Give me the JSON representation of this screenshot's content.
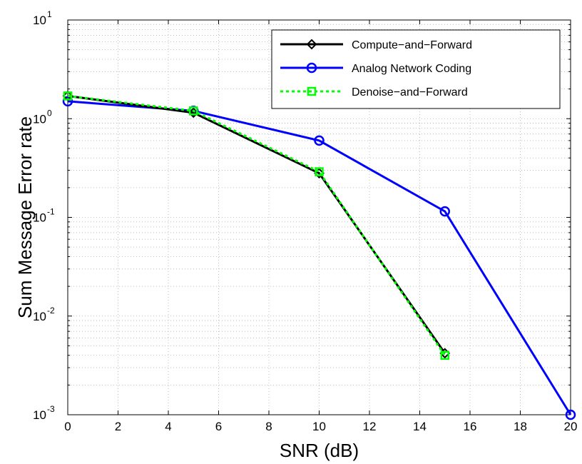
{
  "chart_data": {
    "type": "line",
    "title": "",
    "xlabel": "SNR (dB)",
    "ylabel": "Sum Message Error rate",
    "xlim": [
      0,
      20
    ],
    "ylim": [
      0.001,
      10
    ],
    "yscale": "log",
    "grid": true,
    "legend_position": "top-right",
    "x_ticks": [
      "0",
      "2",
      "4",
      "6",
      "8",
      "10",
      "12",
      "14",
      "16",
      "18",
      "20"
    ],
    "y_ticks": [
      {
        "base": "10",
        "exp": "-3"
      },
      {
        "base": "10",
        "exp": "-2"
      },
      {
        "base": "10",
        "exp": "-1"
      },
      {
        "base": "10",
        "exp": "0"
      },
      {
        "base": "10",
        "exp": "1"
      }
    ],
    "series": [
      {
        "name": "Compute−and−Forward",
        "color": "#000000",
        "marker": "diamond",
        "line_style": "solid",
        "x": [
          0,
          5,
          10,
          15
        ],
        "y": [
          1.7,
          1.15,
          0.28,
          0.0042
        ]
      },
      {
        "name": "Analog Network Coding",
        "color": "#0000ff",
        "marker": "circle",
        "line_style": "solid",
        "x": [
          0,
          5,
          10,
          15,
          20
        ],
        "y": [
          1.5,
          1.2,
          0.6,
          0.115,
          0.001
        ]
      },
      {
        "name": "Denoise−and−Forward",
        "color": "#00ff00",
        "marker": "square",
        "line_style": "dotted",
        "x": [
          0,
          5,
          10,
          15
        ],
        "y": [
          1.7,
          1.2,
          0.29,
          0.004
        ]
      }
    ]
  }
}
